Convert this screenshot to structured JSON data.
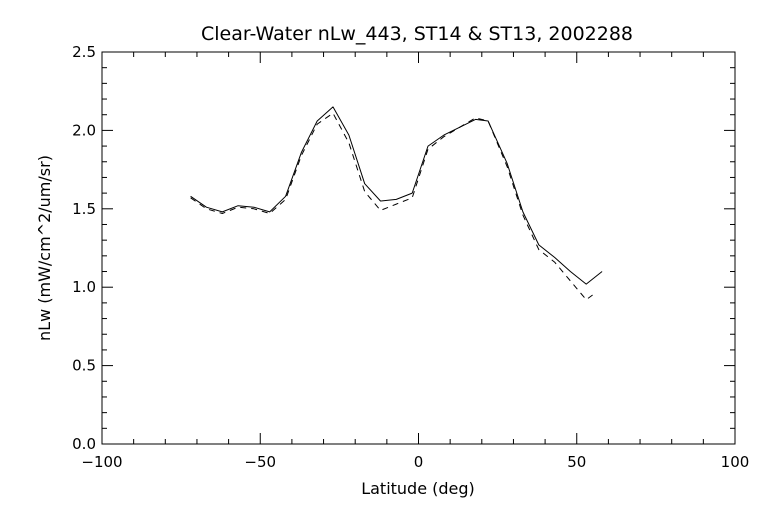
{
  "chart_data": {
    "type": "line",
    "title": "Clear-Water nLw_443, ST14 & ST13, 2002288",
    "xlabel": "Latitude (deg)",
    "ylabel": "nLw (mW/cm^2/um/sr)",
    "xlim": [
      -100,
      100
    ],
    "ylim": [
      0,
      2.5
    ],
    "xticks": [
      -100,
      -50,
      0,
      50,
      100
    ],
    "xtick_labels": [
      "−100",
      "−50",
      "0",
      "50",
      "100"
    ],
    "yticks": [
      0,
      0.5,
      1,
      1.5,
      2,
      2.5
    ],
    "ytick_labels": [
      "0.0",
      "0.5",
      "1.0",
      "1.5",
      "2.0",
      "2.5"
    ],
    "grid": false,
    "legend": false,
    "line_color": "#000000",
    "series": [
      {
        "style": "solid",
        "x": [
          -72,
          -67,
          -62,
          -57,
          -52,
          -47,
          -42,
          -37,
          -32,
          -27,
          -22,
          -17,
          -12,
          -7,
          -2,
          3,
          8,
          13,
          18,
          22,
          28,
          33,
          38,
          43,
          48,
          53,
          58
        ],
        "y": [
          1.58,
          1.51,
          1.48,
          1.52,
          1.51,
          1.48,
          1.58,
          1.86,
          2.06,
          2.15,
          1.97,
          1.66,
          1.55,
          1.56,
          1.6,
          1.9,
          1.97,
          2.02,
          2.07,
          2.06,
          1.79,
          1.48,
          1.27,
          1.19,
          1.1,
          1.02,
          1.1
        ]
      },
      {
        "style": "dashed",
        "x": [
          -72,
          -67,
          -62,
          -57,
          -52,
          -47,
          -42,
          -37,
          -32,
          -27,
          -22,
          -17,
          -12,
          -7,
          -2,
          3,
          8,
          13,
          18,
          22,
          28,
          33,
          38,
          43,
          48,
          53,
          55
        ],
        "y": [
          1.57,
          1.5,
          1.47,
          1.51,
          1.5,
          1.47,
          1.56,
          1.84,
          2.04,
          2.11,
          1.92,
          1.61,
          1.49,
          1.53,
          1.57,
          1.88,
          1.96,
          2.02,
          2.08,
          2.06,
          1.77,
          1.46,
          1.24,
          1.16,
          1.04,
          0.92,
          0.95
        ]
      }
    ]
  }
}
